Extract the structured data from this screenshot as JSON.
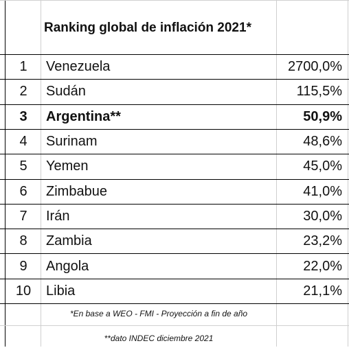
{
  "chart_data": {
    "type": "table",
    "title": "Ranking global de inflación 2021*",
    "rows": [
      {
        "rank": "1",
        "country": "Venezuela",
        "value": "2700,0%",
        "highlight": false
      },
      {
        "rank": "2",
        "country": "Sudán",
        "value": "115,5%",
        "highlight": false
      },
      {
        "rank": "3",
        "country": "Argentina**",
        "value": "50,9%",
        "highlight": true
      },
      {
        "rank": "4",
        "country": "Surinam",
        "value": "48,6%",
        "highlight": false
      },
      {
        "rank": "5",
        "country": "Yemen",
        "value": "45,0%",
        "highlight": false
      },
      {
        "rank": "6",
        "country": "Zimbabue",
        "value": "41,0%",
        "highlight": false
      },
      {
        "rank": "7",
        "country": "Irán",
        "value": "30,0%",
        "highlight": false
      },
      {
        "rank": "8",
        "country": "Zambia",
        "value": "23,2%",
        "highlight": false
      },
      {
        "rank": "9",
        "country": "Angola",
        "value": "22,0%",
        "highlight": false
      },
      {
        "rank": "10",
        "country": "Libia",
        "value": "21,1%",
        "highlight": false
      }
    ],
    "footnotes": [
      "*En base a WEO - FMI - Proyección a fin de año",
      "**dato INDEC diciembre 2021"
    ]
  }
}
